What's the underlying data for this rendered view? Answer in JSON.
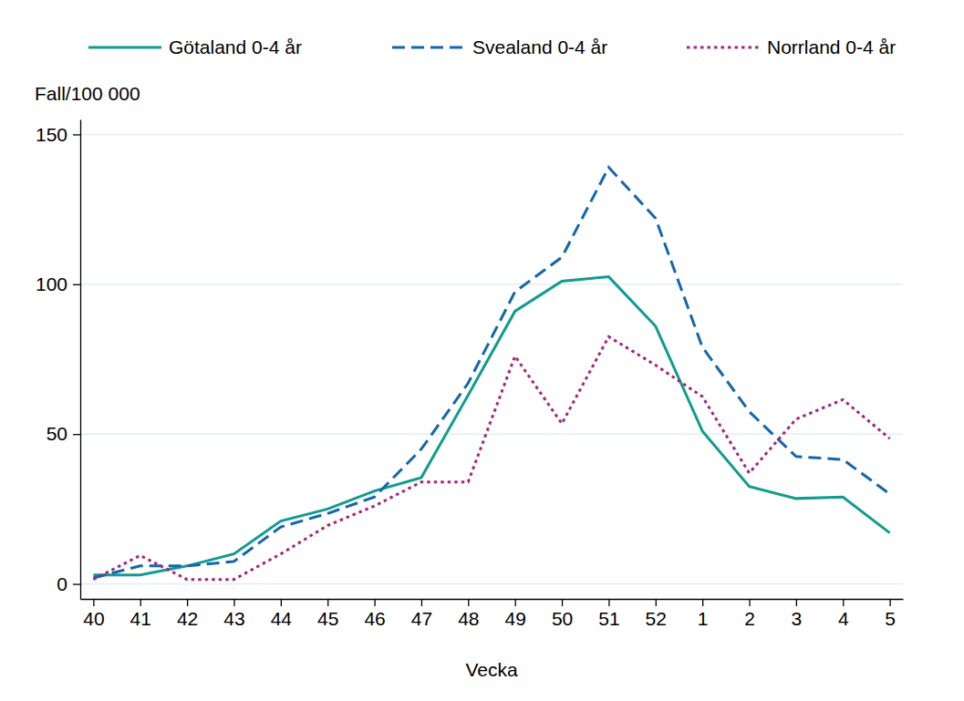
{
  "chart_data": {
    "type": "line",
    "y_label": "Fall/100 000",
    "x_label": "Vecka",
    "categories": [
      "40",
      "41",
      "42",
      "43",
      "44",
      "45",
      "46",
      "47",
      "48",
      "49",
      "50",
      "51",
      "52",
      "1",
      "2",
      "3",
      "4",
      "5"
    ],
    "series": [
      {
        "name": "Götaland 0-4 år",
        "color": "#119c8e",
        "line_style": "solid",
        "values": [
          3,
          3,
          6,
          10,
          21,
          25,
          31,
          35.5,
          63,
          91,
          101,
          102.5,
          86,
          51,
          32.5,
          28.5,
          29,
          17
        ]
      },
      {
        "name": "Svealand 0-4 år",
        "color": "#1466ad",
        "line_style": "dashed",
        "values": [
          2,
          6,
          6,
          7.5,
          19,
          23.5,
          29,
          45,
          67,
          97.5,
          109,
          139,
          122,
          79,
          57.5,
          42.5,
          41.5,
          30
        ]
      },
      {
        "name": "Norrland 0-4 år",
        "color": "#a0287f",
        "line_style": "dotted",
        "values": [
          1.5,
          9.5,
          1.5,
          1.5,
          10,
          19.5,
          26,
          34,
          34,
          76,
          53.5,
          82.5,
          73,
          62.5,
          37,
          55,
          61.5,
          48.5
        ]
      }
    ],
    "ylim": [
      -5,
      155
    ],
    "yticks": [
      0,
      50,
      100,
      150
    ],
    "grid": true,
    "legend": "top"
  }
}
